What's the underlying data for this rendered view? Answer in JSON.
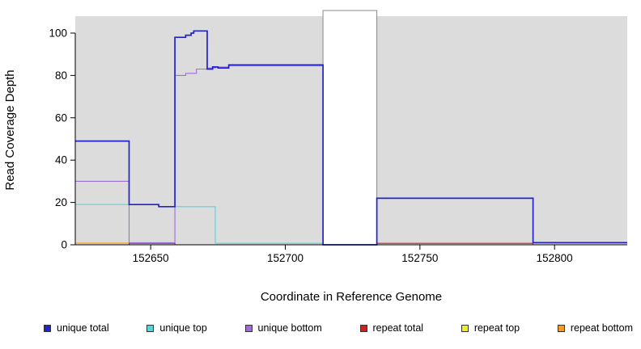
{
  "chart_data": {
    "type": "line",
    "subtype": "step",
    "title": "",
    "xlabel": "Coordinate in Reference Genome",
    "ylabel": "Read Coverage Depth",
    "xlim": [
      152622,
      152827
    ],
    "ylim": [
      0,
      108
    ],
    "x_ticks": [
      152650,
      152700,
      152750,
      152800
    ],
    "y_ticks": [
      0,
      20,
      40,
      60,
      80,
      100
    ],
    "grid": false,
    "legend_position": "bottom",
    "background_color": "#DCDCDC",
    "shaded_regions": [
      {
        "x1": 152622,
        "x2": 152714
      },
      {
        "x1": 152734,
        "x2": 152827
      }
    ],
    "gap_region": {
      "x1": 152714,
      "x2": 152734,
      "color": "#FFFFFF"
    },
    "series": [
      {
        "label": "unique total",
        "color": "#2222CC",
        "steps": [
          [
            152622,
            49
          ],
          [
            152642,
            19
          ],
          [
            152653,
            18
          ],
          [
            152659,
            98
          ],
          [
            152663,
            99
          ],
          [
            152665,
            100
          ],
          [
            152666,
            101
          ],
          [
            152671,
            83
          ],
          [
            152673,
            84
          ],
          [
            152675,
            83.5
          ],
          [
            152679,
            85
          ],
          [
            152714,
            0
          ],
          [
            152734,
            22
          ],
          [
            152792,
            1
          ],
          [
            152827,
            1
          ]
        ]
      },
      {
        "label": "unique top",
        "color": "#55D4DC",
        "steps": [
          [
            152622,
            19
          ],
          [
            152653,
            18
          ],
          [
            152674,
            0.7
          ],
          [
            152714,
            0
          ],
          [
            152827,
            0
          ]
        ]
      },
      {
        "label": "unique bottom",
        "color": "#A06CD5",
        "steps": [
          [
            152622,
            30
          ],
          [
            152642,
            1
          ],
          [
            152659,
            80
          ],
          [
            152663,
            81
          ],
          [
            152667,
            83
          ],
          [
            152671,
            83.5
          ],
          [
            152674,
            84
          ],
          [
            152679,
            84.5
          ],
          [
            152714,
            0
          ],
          [
            152827,
            0
          ]
        ]
      },
      {
        "label": "repeat total",
        "color": "#CC2222",
        "steps": [
          [
            152622,
            0
          ],
          [
            152642,
            0.7
          ],
          [
            152659,
            0
          ],
          [
            152734,
            0.7
          ],
          [
            152792,
            0
          ],
          [
            152827,
            0
          ]
        ]
      },
      {
        "label": "repeat top",
        "color": "#EEEE22",
        "steps": [
          [
            152622,
            0
          ],
          [
            152827,
            0
          ]
        ]
      },
      {
        "label": "repeat bottom",
        "color": "#F59B1E",
        "steps": [
          [
            152622,
            0.8
          ],
          [
            152659,
            0
          ],
          [
            152827,
            0
          ]
        ]
      }
    ]
  }
}
